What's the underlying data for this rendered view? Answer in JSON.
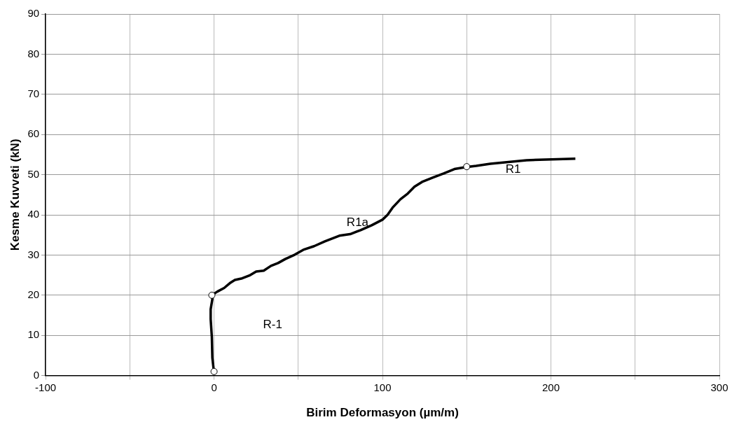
{
  "chart_data": {
    "type": "line",
    "xlabel": "Birim Deformasyon (µm/m)",
    "ylabel": "Kesme Kuvveti (kN)",
    "xlim": [
      -100,
      300
    ],
    "xticks": [
      -100,
      {
        "value": -50,
        "label": null
      },
      0,
      {
        "value": 50,
        "label": null
      },
      100,
      {
        "value": 150,
        "label": null
      },
      200,
      {
        "value": 250,
        "label": null
      },
      300
    ],
    "ylim": [
      0,
      90
    ],
    "yticks": [
      0,
      10,
      20,
      30,
      40,
      50,
      60,
      70,
      80,
      90
    ],
    "grid": true,
    "legend": false,
    "series": [
      {
        "color": "#000000",
        "marker": "none",
        "x": [
          0,
          -1,
          -1.3,
          -2,
          -2,
          -1,
          -1.3,
          2,
          6,
          9.4,
          12.4,
          16.7,
          21,
          25,
          29.5,
          33.8,
          38,
          42.3,
          48,
          53,
          59.4,
          65.8,
          74.4,
          80.8,
          87,
          93.6,
          100,
          103,
          106,
          110.7,
          115,
          119,
          123.5,
          130,
          136.3,
          142.7,
          149.6,
          155.6,
          164,
          185.5,
          214.5
        ],
        "values": [
          0.7,
          4.4,
          9.6,
          14,
          16.5,
          19,
          20,
          20.9,
          21.8,
          23,
          23.8,
          24.2,
          24.9,
          25.9,
          26.1,
          27.3,
          28,
          29,
          30.1,
          31.3,
          32.2,
          33.4,
          34.8,
          35.2,
          36.2,
          37.4,
          38.8,
          40,
          41.8,
          43.9,
          45.3,
          47,
          48.2,
          49.3,
          50.3,
          51.4,
          51.9,
          52.2,
          52.7,
          53.6,
          54
        ]
      },
      {
        "type": "scatter",
        "color": "#000000",
        "marker": "circle",
        "x": [
          0,
          -1.3,
          150
        ],
        "values": [
          1,
          20,
          52
        ]
      }
    ],
    "annotations": [
      "R1",
      "R1a",
      "R-1"
    ]
  }
}
